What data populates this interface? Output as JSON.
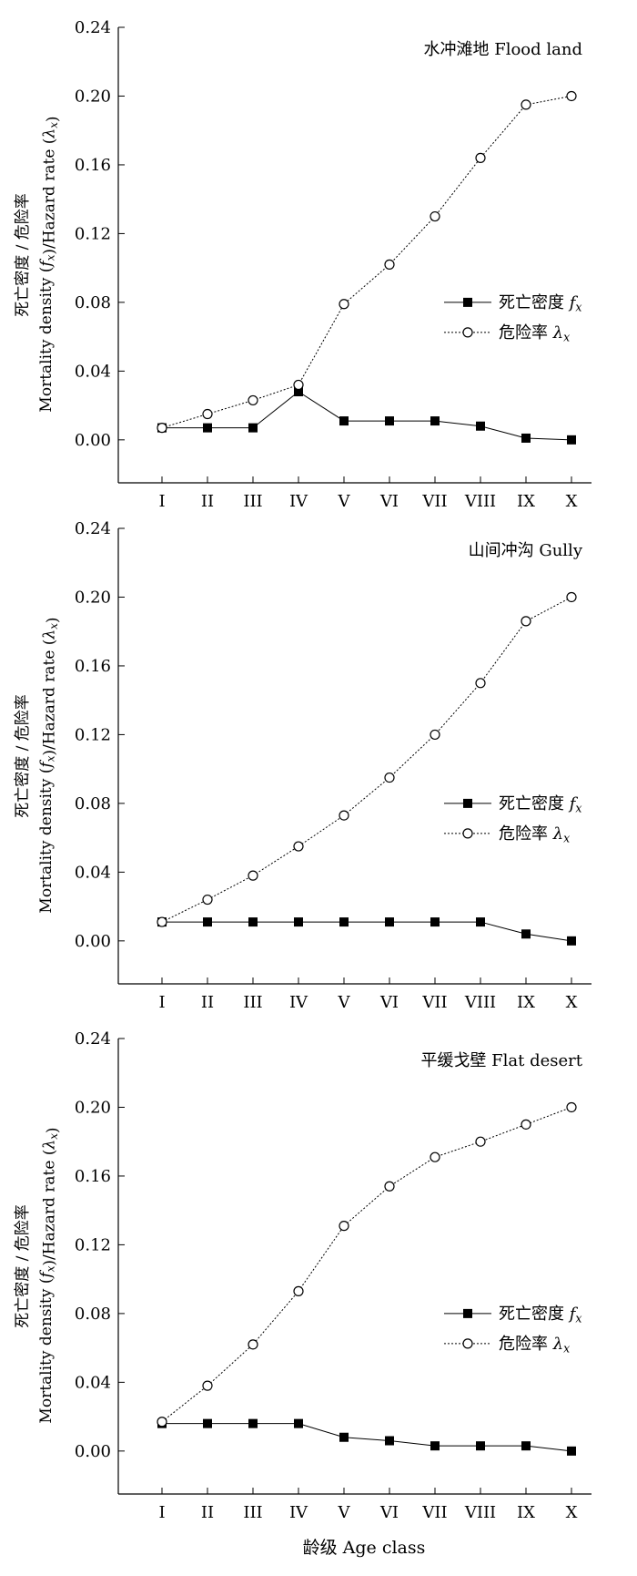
{
  "colors": {
    "axis": "#000000",
    "density": "#000000",
    "hazard": "#000000",
    "background": "#ffffff"
  },
  "y_ticks": [
    "0.00",
    "0.04",
    "0.08",
    "0.12",
    "0.16",
    "0.20",
    "0.24"
  ],
  "y_axis_label_line1": "死亡密度 / 危险率",
  "y_axis_label_line2": "Mortality density (fx)/Hazard rate (λx)",
  "legend": {
    "density": "死亡密度 fx",
    "hazard": "危险率 λx"
  },
  "x_axis_label": "龄级 Age class",
  "chart_data": [
    {
      "type": "line",
      "title": "水冲滩地 Flood land",
      "categories": [
        "I",
        "II",
        "III",
        "IV",
        "V",
        "VI",
        "VII",
        "VIII",
        "IX",
        "X"
      ],
      "series": [
        {
          "name": "死亡密度 fx",
          "marker": "filled-square",
          "line": "solid",
          "values": [
            0.007,
            0.007,
            0.007,
            0.028,
            0.011,
            0.011,
            0.011,
            0.008,
            0.001,
            0.0
          ]
        },
        {
          "name": "危险率 λx",
          "marker": "open-circle",
          "line": "dotted",
          "values": [
            0.007,
            0.015,
            0.023,
            0.032,
            0.079,
            0.102,
            0.13,
            0.164,
            0.195,
            0.2
          ]
        }
      ],
      "ylim": [
        -0.025,
        0.24
      ],
      "xlabel": "",
      "ylabel": "死亡密度 / 危险率 Mortality density (fx)/Hazard rate (λx)",
      "legend_position": "right"
    },
    {
      "type": "line",
      "title": "山间冲沟 Gully",
      "categories": [
        "I",
        "II",
        "III",
        "IV",
        "V",
        "VI",
        "VII",
        "VIII",
        "IX",
        "X"
      ],
      "series": [
        {
          "name": "死亡密度 fx",
          "marker": "filled-square",
          "line": "solid",
          "values": [
            0.011,
            0.011,
            0.011,
            0.011,
            0.011,
            0.011,
            0.011,
            0.011,
            0.004,
            0.0
          ]
        },
        {
          "name": "危险率 λx",
          "marker": "open-circle",
          "line": "dotted",
          "values": [
            0.011,
            0.024,
            0.038,
            0.055,
            0.073,
            0.095,
            0.12,
            0.15,
            0.186,
            0.2
          ]
        }
      ],
      "ylim": [
        -0.025,
        0.24
      ],
      "xlabel": "",
      "ylabel": "死亡密度 / 危险率 Mortality density (fx)/Hazard rate (λx)",
      "legend_position": "right"
    },
    {
      "type": "line",
      "title": "平缓戈壁 Flat desert",
      "categories": [
        "I",
        "II",
        "III",
        "IV",
        "V",
        "VI",
        "VII",
        "VIII",
        "IX",
        "X"
      ],
      "series": [
        {
          "name": "死亡密度 fx",
          "marker": "filled-square",
          "line": "solid",
          "values": [
            0.016,
            0.016,
            0.016,
            0.016,
            0.008,
            0.006,
            0.003,
            0.003,
            0.003,
            0.0
          ]
        },
        {
          "name": "危险率 λx",
          "marker": "open-circle",
          "line": "dotted",
          "values": [
            0.017,
            0.038,
            0.062,
            0.093,
            0.131,
            0.154,
            0.171,
            0.18,
            0.19,
            0.2
          ]
        }
      ],
      "ylim": [
        -0.025,
        0.24
      ],
      "xlabel": "龄级 Age class",
      "ylabel": "死亡密度 / 危险率 Mortality density (fx)/Hazard rate (λx)",
      "legend_position": "right"
    }
  ]
}
